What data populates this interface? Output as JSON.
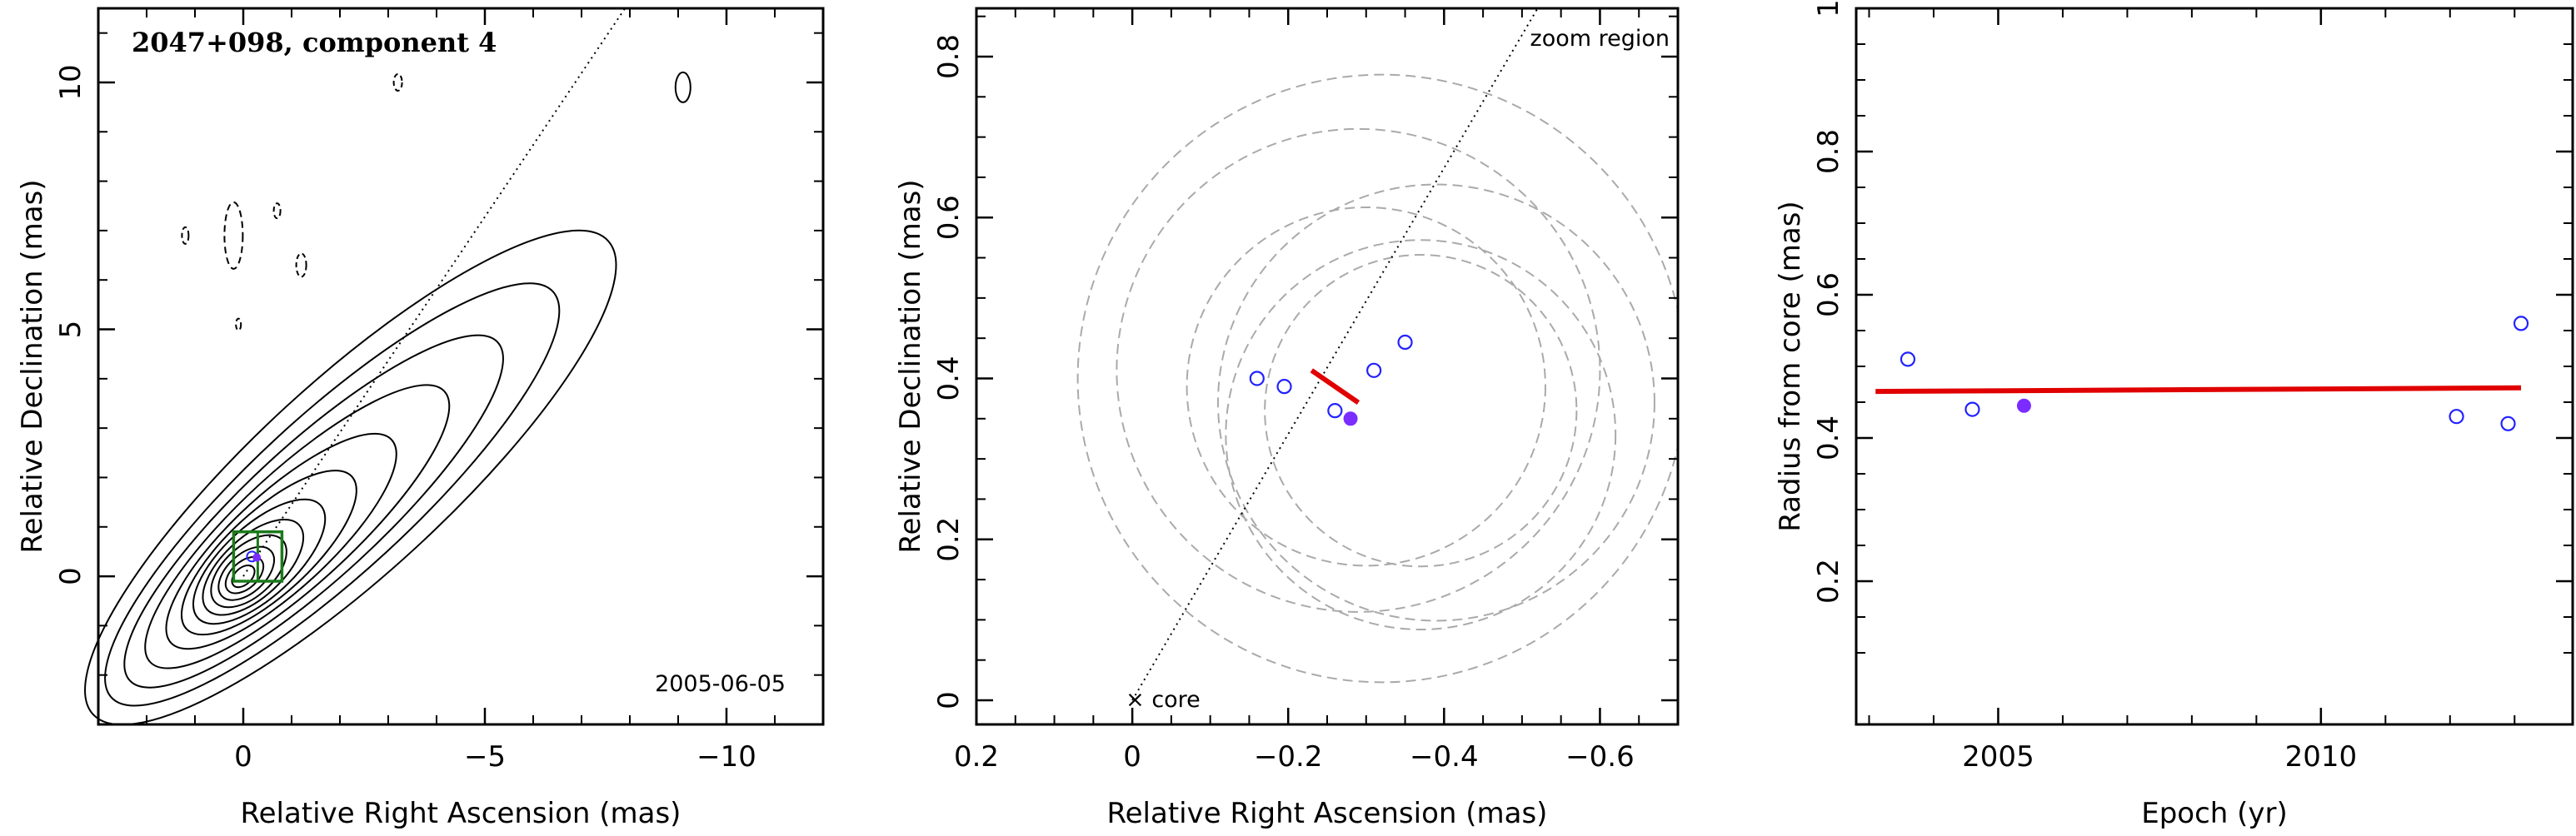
{
  "chart_data": [
    {
      "type": "contour",
      "title": "2047+098, component 4",
      "annotation": "2005-06-05",
      "xlabel": "Relative Right Ascension (mas)",
      "ylabel": "Relative Declination (mas)",
      "xlim": [
        3.0,
        -12.0
      ],
      "ylim": [
        -3.0,
        11.5
      ],
      "xticks": [
        0,
        -5,
        -10
      ],
      "xtick_labels": [
        "0",
        "−5",
        "−10"
      ],
      "yticks": [
        0,
        5,
        10
      ],
      "ytick_labels": [
        "0",
        "5",
        "10"
      ],
      "jet_direction_line": {
        "from": [
          0,
          0
        ],
        "to": [
          -7.9,
          11.5
        ],
        "style": "dotted"
      },
      "zoom_box": {
        "x": [
          0.2,
          -0.8
        ],
        "y": [
          -0.1,
          0.9
        ],
        "color": "#1a7a1a"
      },
      "contour_color": "#000000"
    },
    {
      "type": "scatter",
      "xlabel": "Relative Right Ascension (mas)",
      "ylabel": "Relative Declination (mas)",
      "xlim": [
        0.2,
        -0.7
      ],
      "ylim": [
        -0.03,
        0.86
      ],
      "xticks": [
        0.2,
        0,
        -0.2,
        -0.4,
        -0.6
      ],
      "xtick_labels": [
        "0.2",
        "0",
        "−0.2",
        "−0.4",
        "−0.6"
      ],
      "yticks": [
        0,
        0.2,
        0.4,
        0.6,
        0.8
      ],
      "ytick_labels": [
        "0",
        "0.2",
        "0.4",
        "0.6",
        "0.8"
      ],
      "text_labels": {
        "zoom": "zoom region",
        "core": "× core"
      },
      "direction_line": {
        "from": [
          0,
          0
        ],
        "to": [
          -0.52,
          0.86
        ],
        "style": "dotted"
      },
      "points_open": [
        [
          -0.16,
          0.4
        ],
        [
          -0.195,
          0.39
        ],
        [
          -0.26,
          0.36
        ],
        [
          -0.31,
          0.41
        ],
        [
          -0.35,
          0.445
        ]
      ],
      "points_filled": [
        [
          -0.28,
          0.35
        ]
      ],
      "velocity_vector": {
        "from": [
          -0.23,
          0.41
        ],
        "to": [
          -0.29,
          0.37
        ],
        "color": "#e00000"
      },
      "ellipses": [
        {
          "cx": -0.32,
          "cy": 0.4,
          "r": 0.39
        },
        {
          "cx": -0.29,
          "cy": 0.41,
          "r": 0.31
        },
        {
          "cx": -0.39,
          "cy": 0.37,
          "r": 0.28
        },
        {
          "cx": -0.37,
          "cy": 0.33,
          "r": 0.25
        },
        {
          "cx": -0.3,
          "cy": 0.39,
          "r": 0.23
        },
        {
          "cx": -0.37,
          "cy": 0.36,
          "r": 0.2
        }
      ],
      "open_color": "#2222ff",
      "filled_color": "#7b2cff",
      "ellipse_color": "#aaaaaa"
    },
    {
      "type": "scatter",
      "xlabel": "Epoch (yr)",
      "ylabel": "Radius from core (mas)",
      "xlim": [
        2002.8,
        2013.9
      ],
      "ylim": [
        0.0,
        1.0
      ],
      "xticks": [
        2005,
        2010
      ],
      "xtick_labels": [
        "2005",
        "2010"
      ],
      "yticks": [
        0.2,
        0.4,
        0.6,
        0.8,
        1.0
      ],
      "ytick_labels": [
        "0.2",
        "0.4",
        "0.6",
        "0.8",
        "1"
      ],
      "points_open": [
        [
          2003.6,
          0.51
        ],
        [
          2004.6,
          0.44
        ],
        [
          2012.1,
          0.43
        ],
        [
          2012.9,
          0.42
        ],
        [
          2013.1,
          0.56
        ]
      ],
      "points_filled": [
        [
          2005.4,
          0.445
        ]
      ],
      "fit_line": {
        "x": [
          2003.1,
          2013.1
        ],
        "y": [
          0.465,
          0.47
        ],
        "color": "#e00000"
      },
      "open_color": "#2222ff",
      "filled_color": "#7b2cff"
    }
  ]
}
